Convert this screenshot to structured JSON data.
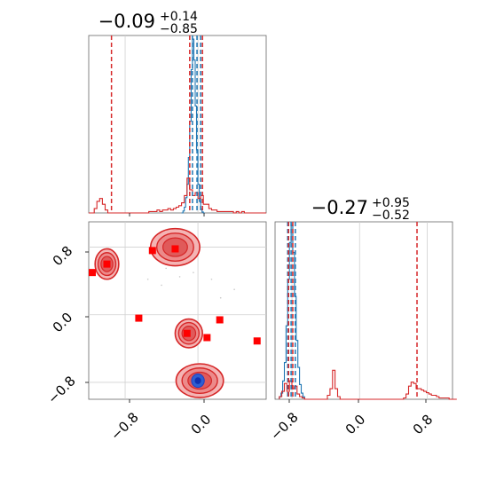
{
  "chart_data": [
    {
      "type": "histogram",
      "panel": "top-left marginal",
      "title_main": "−0.09",
      "title_sup": "+0.14",
      "title_sub": "−0.85",
      "xlim": [
        -1.2,
        0.75
      ],
      "series": [
        {
          "name": "",
          "color": "#1f77b4",
          "bin_start": -0.18,
          "bin_width": 0.015,
          "counts": [
            0,
            2,
            6,
            16,
            30,
            58,
            96,
            150,
            182,
            160,
            112,
            66,
            30,
            12,
            4,
            1,
            0
          ],
          "lines": [
            -0.06,
            -0.01,
            0.03
          ]
        },
        {
          "name": "",
          "color": "#d62728",
          "bin_start": -1.2,
          "bin_width": 0.03,
          "counts": [
            0,
            0,
            3,
            8,
            10,
            6,
            2,
            0,
            0,
            0,
            0,
            0,
            0,
            0,
            0,
            0,
            0,
            0,
            0,
            0,
            0,
            0,
            1,
            1,
            1,
            2,
            1,
            2,
            2,
            3,
            2,
            3,
            4,
            5,
            7,
            12,
            24,
            16,
            12,
            14,
            10,
            12,
            6,
            6,
            3,
            2,
            2,
            1,
            1,
            1,
            1,
            1,
            1,
            0,
            1,
            0,
            1,
            0,
            0,
            0,
            0,
            0,
            0,
            0,
            0
          ],
          "lines": [
            -0.95,
            -0.09,
            0.05
          ]
        }
      ]
    },
    {
      "type": "scatter",
      "panel": "bottom-left 2D",
      "xlim": [
        -1.2,
        0.75
      ],
      "ylim": [
        -1.0,
        1.1
      ],
      "grid": true,
      "contours_red": [
        {
          "x": -1.0,
          "y": 0.6,
          "rx": 0.13,
          "ry": 0.18
        },
        {
          "x": -0.25,
          "y": 0.8,
          "rx": 0.27,
          "ry": 0.22
        },
        {
          "x": -0.1,
          "y": -0.22,
          "rx": 0.15,
          "ry": 0.17
        },
        {
          "x": 0.02,
          "y": -0.78,
          "rx": 0.26,
          "ry": 0.2
        }
      ],
      "contours_blue": [
        {
          "x": 0.0,
          "y": -0.78,
          "rx": 0.07,
          "ry": 0.08
        }
      ],
      "markers": [
        {
          "x": -1.2,
          "y": 0.5
        },
        {
          "x": -1.0,
          "y": 0.6
        },
        {
          "x": -0.5,
          "y": 0.76
        },
        {
          "x": -0.25,
          "y": 0.78
        },
        {
          "x": -0.65,
          "y": -0.04
        },
        {
          "x": -0.12,
          "y": -0.22
        },
        {
          "x": 0.1,
          "y": -0.27
        },
        {
          "x": 0.24,
          "y": -0.06
        },
        {
          "x": 0.65,
          "y": -0.31
        }
      ]
    },
    {
      "type": "histogram",
      "panel": "bottom-right marginal",
      "title_main": "−0.27",
      "title_sup": "+0.95",
      "title_sub": "−0.52",
      "xlim": [
        -1.0,
        1.1
      ],
      "series": [
        {
          "name": "",
          "color": "#1f77b4",
          "bin_start": -0.95,
          "bin_width": 0.02,
          "counts": [
            2,
            5,
            15,
            30,
            60,
            98,
            128,
            142,
            120,
            84,
            48,
            26,
            12,
            5,
            2
          ],
          "lines": [
            -0.85,
            -0.81,
            -0.76
          ]
        },
        {
          "name": "",
          "color": "#d62728",
          "bin_start": -0.95,
          "bin_width": 0.03,
          "counts": [
            2,
            6,
            12,
            6,
            14,
            8,
            10,
            4,
            2,
            1,
            0,
            0,
            0,
            0,
            0,
            0,
            0,
            0,
            0,
            3,
            8,
            22,
            8,
            2,
            0,
            0,
            0,
            0,
            0,
            0,
            0,
            0,
            0,
            0,
            0,
            0,
            0,
            0,
            0,
            0,
            0,
            0,
            0,
            0,
            0,
            0,
            0,
            0,
            0,
            1,
            4,
            10,
            13,
            12,
            8,
            8,
            7,
            6,
            5,
            4,
            3,
            3,
            2,
            1,
            1,
            1,
            1,
            0,
            0,
            0
          ],
          "lines": [
            -0.84,
            -0.79,
            0.68
          ]
        }
      ],
      "xticks": [
        "−0.8",
        "0.0",
        "0.8"
      ]
    }
  ],
  "axes": {
    "left_y_ticks": [
      "0.8",
      "0.0",
      "−0.8"
    ],
    "left_x_ticks": [
      "−0.8",
      "0.0"
    ],
    "right_x_ticks": [
      "−0.8",
      "0.0",
      "0.8"
    ]
  }
}
